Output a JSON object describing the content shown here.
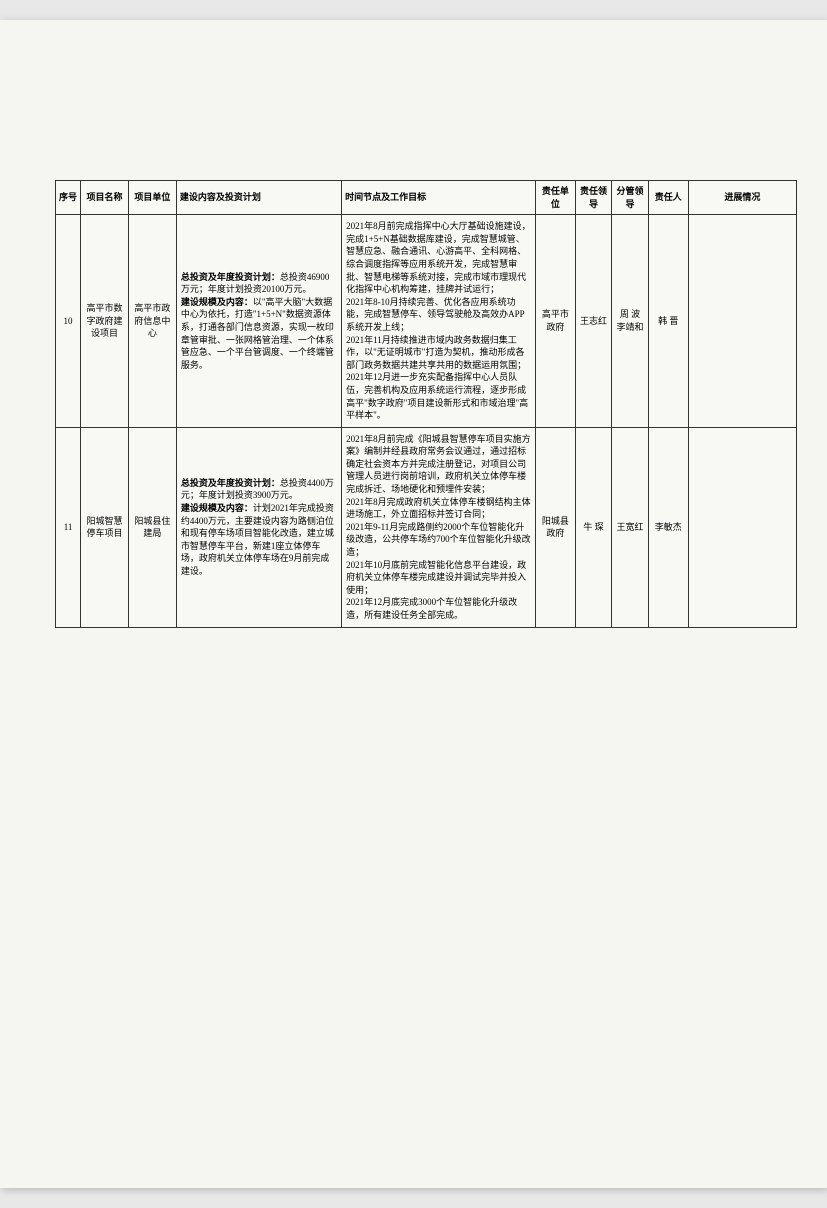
{
  "headers": {
    "seq": "序号",
    "name": "项目名称",
    "unit": "项目单位",
    "plan": "建设内容及投资计划",
    "time": "时间节点及工作目标",
    "resp_unit": "责任单位",
    "resp_lead": "责任领导",
    "mgmt_lead": "分管领导",
    "resp_person": "责任人",
    "progress": "进展情况"
  },
  "rows": [
    {
      "seq": "10",
      "name": "高平市数字政府建设项目",
      "unit": "高平市政府信息中心",
      "plan_label1": "总投资及年度投资计划：",
      "plan_text1": "总投资46900万元；年度计划投资20100万元。",
      "plan_label2": "建设规模及内容：",
      "plan_text2": "以\"高平大脑\"大数据中心为依托，打造\"1+5+N\"数据资源体系，打通各部门信息资源，实现一枚印章管审批、一张网格管治理、一个体系管应急、一个平台管调度、一个终端管服务。",
      "time": "2021年8月前完成指挥中心大厅基础设施建设，完成1+5+N基础数据库建设，完成智慧城管、智慧应急、融合通讯、心游高平、全科网格、综合调度指挥等应用系统开发，完成智慧审批、智慧电梯等系统对接，完成市域市理现代化指挥中心机构筹建，挂牌并试运行；\n2021年8-10月持续完善、优化各应用系统功能，完成智慧停车、领导驾驶舱及高效办APP系统开发上线；\n2021年11月持续推进市域内政务数据归集工作，以\"无证明城市\"打造为契机，推动形成各部门政务数据共建共享共用的数据运用氛围；\n2021年12月进一步充实配备指挥中心人员队伍，完善机构及应用系统运行流程，逐步形成高平\"数字政府\"项目建设新形式和市域治理\"高平样本\"。",
      "resp_unit": "高平市政府",
      "resp_lead": "王志红",
      "mgmt_lead": "周 波\n李靖和",
      "resp_person": "韩 晋",
      "progress": ""
    },
    {
      "seq": "11",
      "name": "阳城智慧停车项目",
      "unit": "阳城县住建局",
      "plan_label1": "总投资及年度投资计划：",
      "plan_text1": "总投资4400万元；年度计划投资3900万元。",
      "plan_label2": "建设规模及内容：",
      "plan_text2": "计划2021年完成投资约4400万元，主要建设内容为路侧泊位和现有停车场项目智能化改造，建立城市智慧停车平台，新建1座立体停车场，政府机关立体停车场在9月前完成建设。",
      "time": "2021年8月前完成《阳城县智慧停车项目实施方案》编制并经县政府常务会议通过，通过招标确定社会资本方并完成注册登记，对项目公司管理人员进行岗前培训，政府机关立体停车楼完成拆迁、场地硬化和预埋件安装；\n2021年8月完成政府机关立体停车楼钢结构主体进场施工，外立面招标并签订合同；\n2021年9-11月完成路侧约2000个车位智能化升级改造，公共停车场约700个车位智能化升级改造；\n2021年10月底前完成智能化信息平台建设，政府机关立体停车楼完成建设并调试完毕并投入使用；\n2021年12月底完成3000个车位智能化升级改造，所有建设任务全部完成。",
      "resp_unit": "阳城县政府",
      "resp_lead": "牛 琛",
      "mgmt_lead": "王宽红",
      "resp_person": "李敏杰",
      "progress": ""
    }
  ]
}
